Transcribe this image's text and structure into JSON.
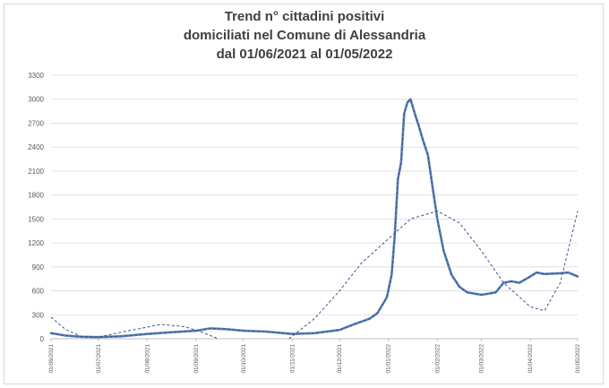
{
  "chart_data": {
    "type": "line",
    "title_lines": [
      "Trend n° cittadini positivi",
      "domiciliati nel Comune di Alessandria",
      "dal 01/06/2021 al 01/05/2022"
    ],
    "xlabel": "",
    "ylabel": "",
    "x_tick_labels": [
      "01/06/2021",
      "01/07/2021",
      "01/08/2021",
      "01/09/2021",
      "01/10/2021",
      "01/11/2021",
      "01/12/2021",
      "01/01/2022",
      "01/02/2022",
      "01/03/2022",
      "01/04/2022",
      "01/05/2022"
    ],
    "y_ticks": [
      0,
      300,
      600,
      900,
      1200,
      1500,
      1800,
      2100,
      2400,
      2700,
      3000,
      3300
    ],
    "ylim": [
      0,
      3300
    ],
    "grid": true,
    "legend": "none",
    "colors": {
      "series": "#5b7fb0",
      "trend": "#2f5597",
      "grid": "#d9d9d9",
      "text": "#404040"
    },
    "series": [
      {
        "style": "solid",
        "x": [
          "2021-06-01",
          "2021-06-10",
          "2021-06-20",
          "2021-07-01",
          "2021-07-15",
          "2021-08-01",
          "2021-08-15",
          "2021-09-01",
          "2021-09-10",
          "2021-09-20",
          "2021-10-01",
          "2021-10-15",
          "2021-11-01",
          "2021-11-15",
          "2021-12-01",
          "2021-12-10",
          "2021-12-20",
          "2021-12-25",
          "2021-12-31",
          "2022-01-03",
          "2022-01-05",
          "2022-01-07",
          "2022-01-09",
          "2022-01-11",
          "2022-01-13",
          "2022-01-15",
          "2022-01-18",
          "2022-01-20",
          "2022-01-23",
          "2022-01-26",
          "2022-01-29",
          "2022-02-01",
          "2022-02-05",
          "2022-02-10",
          "2022-02-15",
          "2022-02-20",
          "2022-03-01",
          "2022-03-10",
          "2022-03-15",
          "2022-03-20",
          "2022-03-25",
          "2022-04-01",
          "2022-04-05",
          "2022-04-10",
          "2022-04-20",
          "2022-04-25",
          "2022-05-01"
        ],
        "values": [
          70,
          40,
          25,
          20,
          30,
          60,
          80,
          100,
          130,
          120,
          100,
          90,
          60,
          70,
          110,
          180,
          250,
          320,
          520,
          800,
          1300,
          2000,
          2200,
          2820,
          2960,
          3000,
          2800,
          2680,
          2480,
          2300,
          1900,
          1500,
          1100,
          800,
          650,
          580,
          550,
          580,
          700,
          720,
          700,
          780,
          830,
          810,
          820,
          830,
          780
        ]
      },
      {
        "style": "dashed",
        "x": [
          "2021-06-01",
          "2021-06-10",
          "2021-06-20",
          "2021-07-01",
          "2021-07-15",
          "2021-08-01",
          "2021-08-15",
          "2021-09-01",
          "2021-09-10",
          "2021-09-20",
          "2021-10-01",
          "2021-10-15",
          "2021-11-01",
          "2021-11-15",
          "2021-12-01",
          "2021-12-10",
          "2021-12-20",
          "2021-12-25",
          "2021-12-31",
          "2022-01-03",
          "2022-01-05",
          "2022-01-07",
          "2022-01-09",
          "2022-01-11",
          "2022-01-13",
          "2022-01-15",
          "2022-01-18",
          "2022-01-20",
          "2022-01-23",
          "2022-01-26",
          "2022-01-29",
          "2022-02-01",
          "2022-02-05",
          "2022-02-10",
          "2022-02-15",
          "2022-02-20",
          "2022-03-01",
          "2022-03-10",
          "2022-03-15",
          "2022-03-20",
          "2022-03-25",
          "2022-04-01",
          "2022-04-05",
          "2022-04-10",
          "2022-04-20",
          "2022-04-25",
          "2022-05-01"
        ],
        "values": [
          70,
          40,
          25,
          20,
          30,
          60,
          80,
          100,
          130,
          120,
          100,
          90,
          60,
          70,
          110,
          180,
          250,
          320,
          520,
          800,
          1300,
          2000,
          2200,
          2820,
          2960,
          3000,
          2800,
          2680,
          2480,
          2300,
          1900,
          1500,
          1100,
          800,
          650,
          580,
          550,
          580,
          700,
          720,
          700,
          780,
          830,
          810,
          820,
          830,
          780
        ]
      },
      {
        "style": "dashed",
        "x": [
          "2021-06-01",
          "2021-06-10",
          "2021-06-20",
          "2021-07-01",
          "2021-07-20",
          "2021-08-10",
          "2021-08-25",
          "2021-09-05",
          "2021-09-15"
        ],
        "values": [
          270,
          120,
          30,
          20,
          100,
          180,
          150,
          80,
          0
        ]
      },
      {
        "style": "dashed",
        "x": [
          "2021-10-30",
          "2021-11-15",
          "2021-12-01",
          "2021-12-15",
          "2022-01-01",
          "2022-01-15",
          "2022-02-01",
          "2022-02-15",
          "2022-03-01",
          "2022-03-15",
          "2022-04-01",
          "2022-04-10",
          "2022-04-20",
          "2022-05-01"
        ],
        "values": [
          0,
          250,
          600,
          950,
          1250,
          1500,
          1600,
          1450,
          1100,
          700,
          400,
          350,
          700,
          1600
        ]
      }
    ]
  }
}
